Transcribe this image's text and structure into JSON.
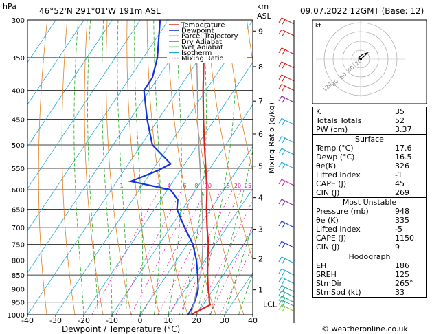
{
  "header": {
    "pressure_unit": "hPa",
    "location": "46°52'N  291°01'W  191m  ASL",
    "height_unit": "km",
    "height_unit2": "ASL",
    "datetime": "09.07.2022  12GMT  (Base: 12)"
  },
  "legend": [
    "Temperature",
    "Dewpoint",
    "Parcel Trajectory",
    "Dry Adiabat",
    "Wet Adiabat",
    "Isotherm",
    "Mixing Ratio"
  ],
  "hodograph": {
    "label": "kt",
    "ring_labels": [
      "20",
      "40",
      "60",
      "80",
      "120"
    ]
  },
  "chart_data": {
    "type": "line",
    "title": "",
    "xlabel": "Dewpoint / Temperature (°C)",
    "ylabel": "",
    "xlim": [
      -40,
      40
    ],
    "ylim": [
      1000,
      300
    ],
    "x_ticks": [
      -40,
      -30,
      -20,
      -10,
      0,
      10,
      20,
      30,
      40
    ],
    "pressure_levels": [
      300,
      350,
      400,
      450,
      500,
      550,
      600,
      650,
      700,
      750,
      800,
      850,
      900,
      950,
      1000
    ],
    "height_km": [
      {
        "km": 1,
        "p": 903
      },
      {
        "km": 2,
        "p": 795
      },
      {
        "km": 3,
        "p": 705
      },
      {
        "km": 4,
        "p": 620
      },
      {
        "km": 5,
        "p": 545
      },
      {
        "km": 6,
        "p": 478
      },
      {
        "km": 7,
        "p": 418
      },
      {
        "km": 8,
        "p": 363
      },
      {
        "km": 9,
        "p": 314
      }
    ],
    "lcl_label": "LCL",
    "lcl_p": 958,
    "mixing_ratio_label": "Mixing Ratio (g/kg)",
    "mixing_ratio_labels": [
      "1",
      "2",
      "3",
      "4",
      "6",
      "8",
      "10",
      "15",
      "20",
      "25"
    ],
    "series": [
      {
        "name": "Temperature",
        "color": "#dd2222",
        "points": [
          [
            1000,
            18.0
          ],
          [
            975,
            20.8
          ],
          [
            960,
            22.5
          ],
          [
            950,
            21.6
          ],
          [
            925,
            20.0
          ],
          [
            900,
            18.0
          ],
          [
            850,
            14.5
          ],
          [
            800,
            11.0
          ],
          [
            750,
            7.5
          ],
          [
            700,
            3.0
          ],
          [
            650,
            -1.5
          ],
          [
            600,
            -6.0
          ],
          [
            550,
            -11.5
          ],
          [
            500,
            -17.5
          ],
          [
            450,
            -24.0
          ],
          [
            400,
            -31.0
          ],
          [
            350,
            -38.5
          ],
          [
            300,
            -47.5
          ]
        ]
      },
      {
        "name": "Dewpoint",
        "color": "#1133dd",
        "points": [
          [
            1000,
            17.0
          ],
          [
            975,
            16.8
          ],
          [
            960,
            16.5
          ],
          [
            950,
            16.3
          ],
          [
            925,
            15.5
          ],
          [
            900,
            14.5
          ],
          [
            850,
            11.0
          ],
          [
            800,
            7.0
          ],
          [
            750,
            2.0
          ],
          [
            700,
            -5.0
          ],
          [
            650,
            -12.0
          ],
          [
            625,
            -14.0
          ],
          [
            600,
            -19.0
          ],
          [
            580,
            -35.0
          ],
          [
            555,
            -28.0
          ],
          [
            540,
            -25.0
          ],
          [
            500,
            -36.0
          ],
          [
            450,
            -44.0
          ],
          [
            400,
            -52.0
          ],
          [
            380,
            -52.0
          ],
          [
            350,
            -55.0
          ],
          [
            300,
            -63.0
          ]
        ]
      },
      {
        "name": "Parcel Trajectory",
        "color": "#999999",
        "points": [
          [
            1000,
            18.0
          ],
          [
            958,
            16.5
          ],
          [
            900,
            14.0
          ],
          [
            850,
            12.0
          ],
          [
            800,
            9.0
          ],
          [
            750,
            5.5
          ],
          [
            700,
            1.5
          ],
          [
            650,
            -3.0
          ],
          [
            600,
            -8.0
          ],
          [
            550,
            -13.5
          ],
          [
            500,
            -19.5
          ],
          [
            450,
            -26.0
          ],
          [
            400,
            -33.0
          ],
          [
            350,
            -41.0
          ],
          [
            300,
            -51.0
          ]
        ]
      }
    ]
  },
  "indices": {
    "top": [
      [
        "K",
        "35"
      ],
      [
        "Totals Totals",
        "52"
      ],
      [
        "PW (cm)",
        "3.37"
      ]
    ],
    "surface_title": "Surface",
    "surface": [
      [
        "Temp (°C)",
        "17.6"
      ],
      [
        "Dewp (°C)",
        "16.5"
      ],
      [
        "θe(K)",
        "326"
      ],
      [
        "Lifted Index",
        "-1"
      ],
      [
        "CAPE (J)",
        "45"
      ],
      [
        "CIN (J)",
        "269"
      ]
    ],
    "unstable_title": "Most Unstable",
    "unstable": [
      [
        "Pressure (mb)",
        "948"
      ],
      [
        "θe (K)",
        "335"
      ],
      [
        "Lifted Index",
        "-5"
      ],
      [
        "CAPE (J)",
        "1150"
      ],
      [
        "CIN (J)",
        "9"
      ]
    ],
    "hodo_title": "Hodograph",
    "hodo": [
      [
        "EH",
        "186"
      ],
      [
        "SREH",
        "125"
      ],
      [
        "StmDir",
        "265°"
      ],
      [
        "StmSpd (kt)",
        "33"
      ]
    ]
  },
  "copyright": "© weatheronline.co.uk",
  "colors": {
    "temperature": "#dd2222",
    "dewpoint": "#1133dd",
    "parcel": "#999999",
    "dry_adiabat": "#e08020",
    "wet_adiabat": "#22aa22",
    "isotherm": "#22aadd",
    "mixing_ratio": "#dd22aa"
  }
}
